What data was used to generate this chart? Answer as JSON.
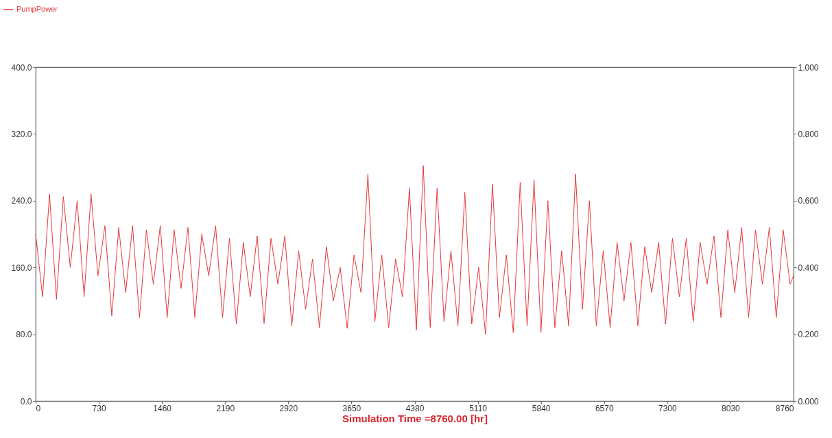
{
  "chart_data": {
    "type": "line",
    "xlabel": "Simulation Time =8760.00 [hr]",
    "legend": "top left",
    "grid": false,
    "x": [
      0,
      80,
      160,
      240,
      320,
      400,
      480,
      560,
      640,
      720,
      800,
      880,
      960,
      1040,
      1120,
      1200,
      1280,
      1360,
      1440,
      1520,
      1600,
      1680,
      1760,
      1840,
      1920,
      2000,
      2080,
      2160,
      2240,
      2320,
      2400,
      2480,
      2560,
      2640,
      2720,
      2800,
      2880,
      2960,
      3040,
      3120,
      3200,
      3280,
      3360,
      3440,
      3520,
      3600,
      3680,
      3760,
      3840,
      3920,
      4000,
      4080,
      4160,
      4240,
      4320,
      4400,
      4480,
      4560,
      4640,
      4720,
      4800,
      4880,
      4960,
      5040,
      5120,
      5200,
      5280,
      5360,
      5440,
      5520,
      5600,
      5680,
      5760,
      5840,
      5920,
      6000,
      6080,
      6160,
      6240,
      6320,
      6400,
      6480,
      6560,
      6640,
      6720,
      6800,
      6880,
      6960,
      7040,
      7120,
      7200,
      7280,
      7360,
      7440,
      7520,
      7600,
      7680,
      7760,
      7840,
      7920,
      8000,
      8080,
      8160,
      8240,
      8320,
      8400,
      8480,
      8560,
      8640,
      8720,
      8760
    ],
    "series": [
      {
        "name": "PumpPower",
        "color": "#e8383d",
        "values": [
          200,
          125,
          248,
          122,
          245,
          160,
          240,
          125,
          248,
          150,
          210,
          102,
          208,
          130,
          210,
          100,
          205,
          140,
          210,
          100,
          205,
          135,
          208,
          100,
          200,
          150,
          210,
          100,
          195,
          92,
          190,
          125,
          198,
          93,
          195,
          140,
          198,
          90,
          180,
          110,
          170,
          88,
          185,
          120,
          160,
          87,
          175,
          130,
          272,
          95,
          175,
          88,
          170,
          125,
          255,
          85,
          282,
          88,
          255,
          95,
          180,
          90,
          250,
          92,
          160,
          80,
          260,
          100,
          175,
          82,
          262,
          90,
          265,
          82,
          240,
          88,
          180,
          90,
          272,
          110,
          240,
          90,
          180,
          88,
          190,
          120,
          190,
          90,
          185,
          130,
          190,
          92,
          195,
          125,
          195,
          95,
          190,
          140,
          198,
          100,
          205,
          130,
          208,
          100,
          205,
          140,
          208,
          100,
          205,
          140,
          150
        ]
      }
    ],
    "xlim": [
      0,
      8760
    ],
    "xticks": [
      0,
      730,
      1460,
      2190,
      2920,
      3650,
      4380,
      5110,
      5840,
      6570,
      7300,
      8030,
      8760
    ],
    "ylim": [
      0,
      400
    ],
    "yticks": [
      {
        "value": 0,
        "label": "0.0"
      },
      {
        "value": 80,
        "label": "80.0"
      },
      {
        "value": 160,
        "label": "160.0"
      },
      {
        "value": 240,
        "label": "240.0"
      },
      {
        "value": 320,
        "label": "320.0"
      },
      {
        "value": 400,
        "label": "400.0"
      }
    ],
    "y2lim": [
      0,
      1
    ],
    "y2ticks": [
      {
        "value": 0,
        "label": "0.000"
      },
      {
        "value": 0.2,
        "label": "0.200"
      },
      {
        "value": 0.4,
        "label": "0.400"
      },
      {
        "value": 0.6,
        "label": "0.600"
      },
      {
        "value": 0.8,
        "label": "0.800"
      },
      {
        "value": 1,
        "label": "1.000"
      }
    ]
  }
}
